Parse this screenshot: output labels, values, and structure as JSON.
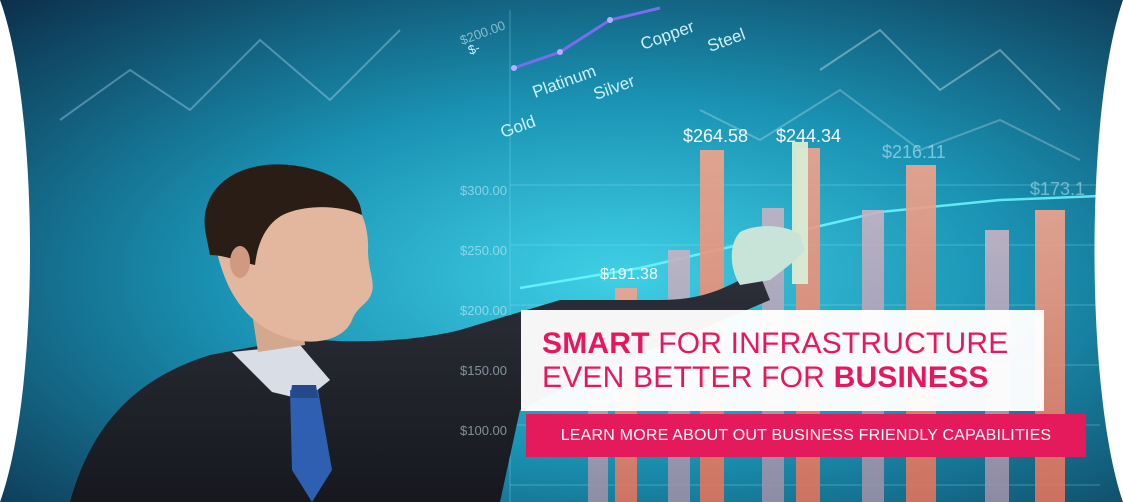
{
  "chart_overlay": {
    "axis_labels": [
      "$200.00",
      "$-",
      "$300.00",
      "$250.00",
      "$200.00",
      "$150.00",
      "$100.00"
    ],
    "metals": [
      "Gold",
      "Platinum",
      "Silver",
      "Copper",
      "Steel"
    ],
    "value_labels": [
      "$264.58",
      "$244.34",
      "$191.38",
      "$216.11",
      "$173.1"
    ]
  },
  "headline": {
    "line1_strong": "SMART",
    "line1_rest": " FOR INFRASTRUCTURE",
    "line2_rest": "EVEN BETTER FOR ",
    "line2_strong": "BUSINESS"
  },
  "cta": {
    "label": "LEARN MORE ABOUT OUT BUSINESS FRIENDLY CAPABILITIES"
  },
  "colors": {
    "accent": "#e8175d",
    "cta_bg": "#e51a5d",
    "bg_dark": "#0b2a45",
    "bg_light": "#3fd0e6"
  }
}
